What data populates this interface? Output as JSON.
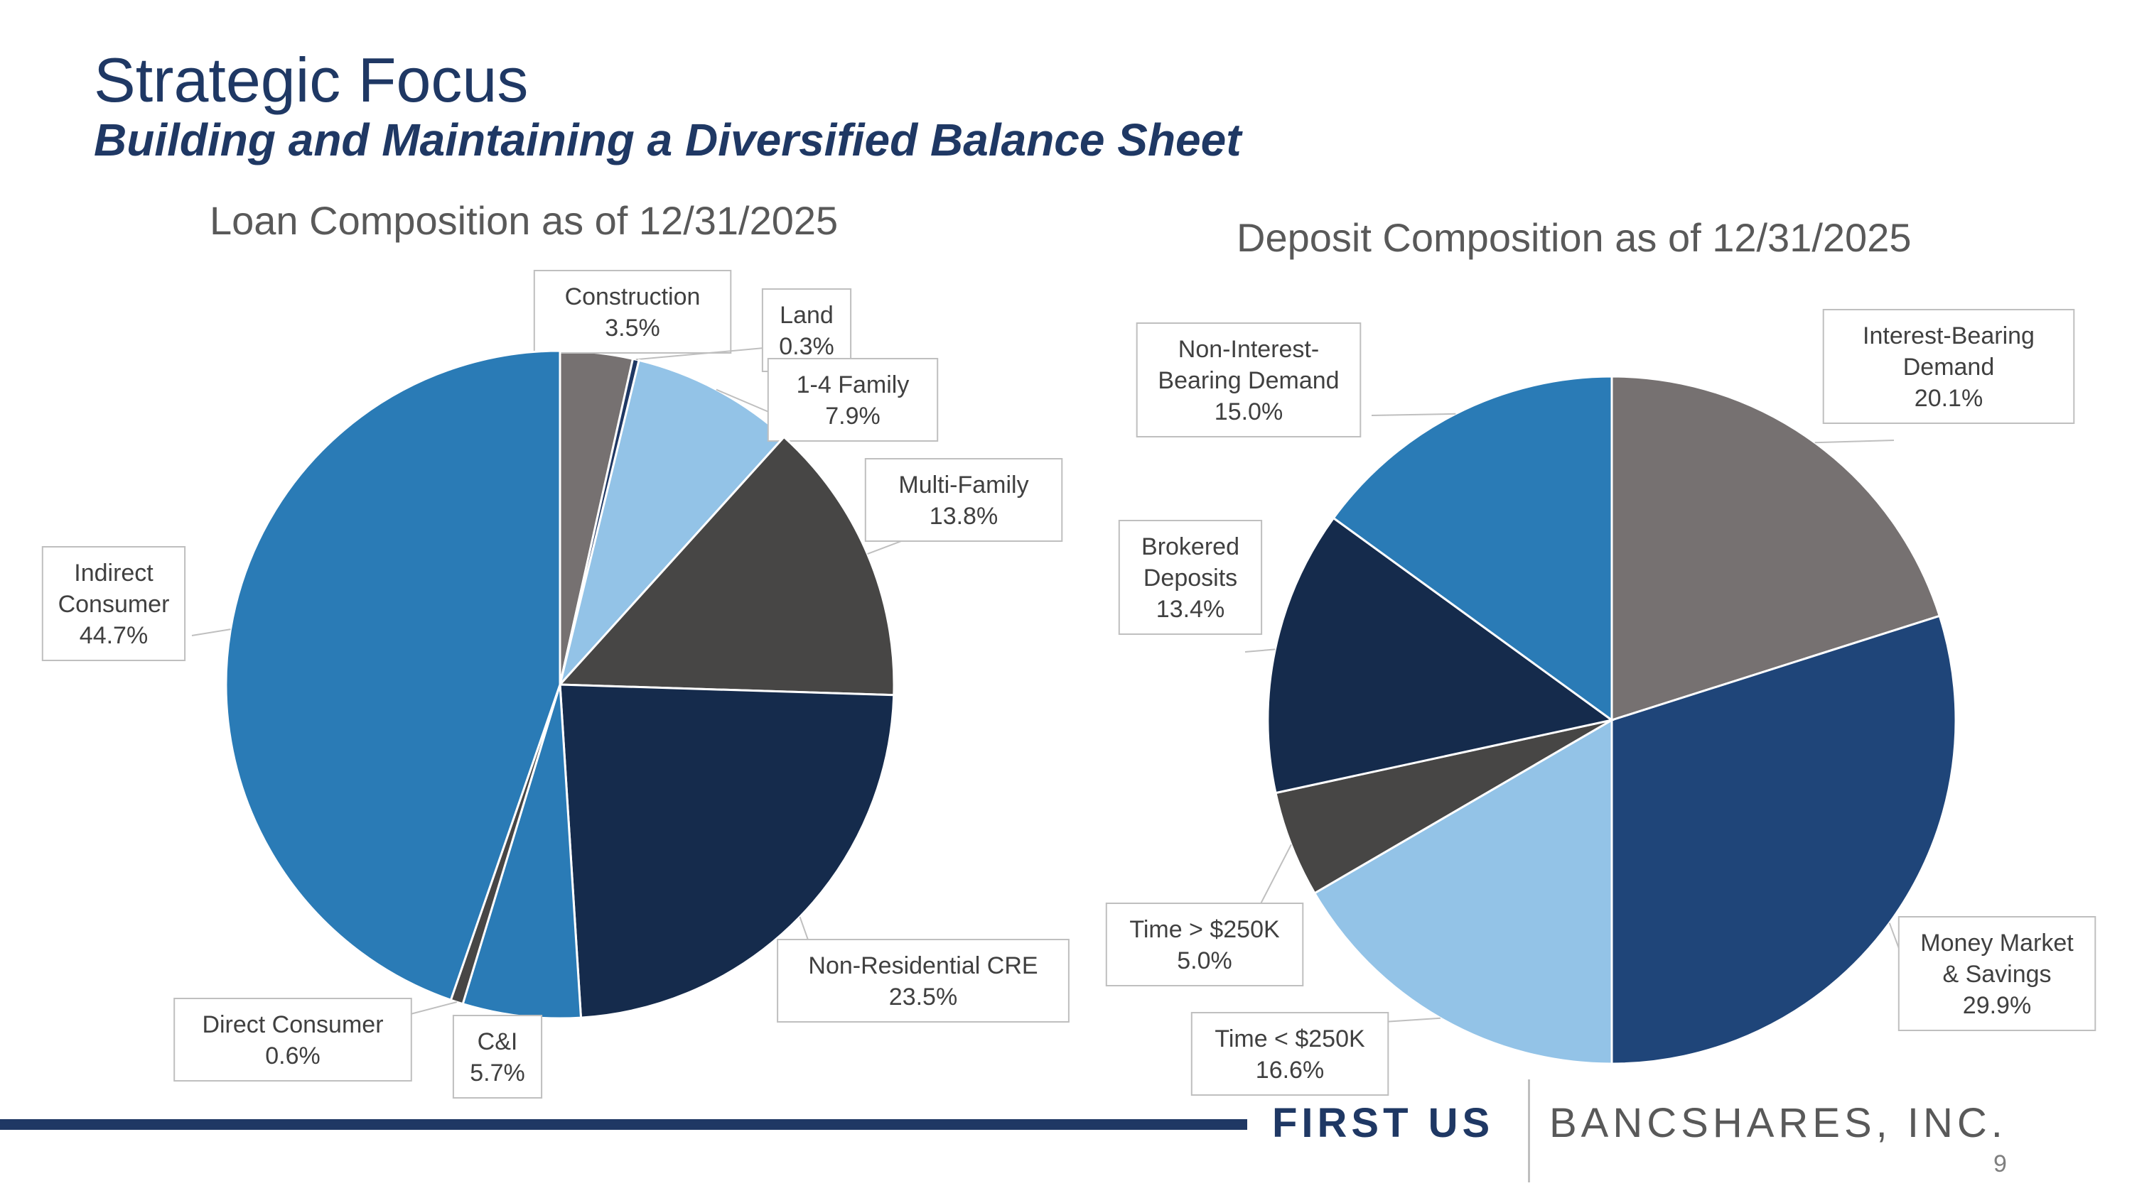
{
  "slide": {
    "title": "Strategic Focus",
    "subtitle": "Building and Maintaining a Diversified Balance Sheet",
    "page_number": "9"
  },
  "footer": {
    "brand_bold": "FIRST US",
    "brand_light": "BANCSHARES, INC."
  },
  "colors": {
    "title": "#1f3864",
    "chart_title": "#595959",
    "label_text": "#404040",
    "label_border": "#bfbfbf"
  },
  "chart_data": [
    {
      "type": "pie",
      "title": "Loan Composition as of 12/31/2025",
      "slices": [
        {
          "name": "Construction",
          "value": 3.5,
          "label_lines": [
            "Construction",
            "3.5%"
          ],
          "color": "#767171"
        },
        {
          "name": "Land",
          "value": 0.3,
          "label_lines": [
            "Land",
            "0.3%"
          ],
          "color": "#1f3864"
        },
        {
          "name": "1-4 Family",
          "value": 7.9,
          "label_lines": [
            "1-4 Family",
            "7.9%"
          ],
          "color": "#93c3e7"
        },
        {
          "name": "Multi-Family",
          "value": 13.8,
          "label_lines": [
            "Multi-Family",
            "13.8%"
          ],
          "color": "#474645"
        },
        {
          "name": "Non-Residential CRE",
          "value": 23.5,
          "label_lines": [
            "Non-Residential CRE",
            "23.5%"
          ],
          "color": "#152b4c"
        },
        {
          "name": "C&I",
          "value": 5.7,
          "label_lines": [
            "C&I",
            "5.7%"
          ],
          "color": "#2a7bb6"
        },
        {
          "name": "Direct Consumer",
          "value": 0.6,
          "label_lines": [
            "Direct Consumer",
            "0.6%"
          ],
          "color": "#474645"
        },
        {
          "name": "Indirect Consumer",
          "value": 44.7,
          "label_lines": [
            "Indirect",
            "Consumer",
            "44.7%"
          ],
          "color": "#2a7bb6"
        }
      ]
    },
    {
      "type": "pie",
      "title": "Deposit Composition as of 12/31/2025",
      "slices": [
        {
          "name": "Interest-Bearing Demand",
          "value": 20.1,
          "label_lines": [
            "Interest-Bearing",
            "Demand",
            "20.1%"
          ],
          "color": "#767171"
        },
        {
          "name": "Money Market & Savings",
          "value": 29.9,
          "label_lines": [
            "Money Market",
            "& Savings",
            "29.9%"
          ],
          "color": "#1f4579"
        },
        {
          "name": "Time < $250K",
          "value": 16.6,
          "label_lines": [
            "Time < $250K",
            "16.6%"
          ],
          "color": "#93c3e7"
        },
        {
          "name": "Time > $250K",
          "value": 5.0,
          "label_lines": [
            "Time > $250K",
            "5.0%"
          ],
          "color": "#474645"
        },
        {
          "name": "Brokered Deposits",
          "value": 13.4,
          "label_lines": [
            "Brokered",
            "Deposits",
            "13.4%"
          ],
          "color": "#152b4c"
        },
        {
          "name": "Non-Interest-Bearing Demand",
          "value": 15.0,
          "label_lines": [
            "Non-Interest-",
            "Bearing Demand",
            "15.0%"
          ],
          "color": "#2a7bb6"
        }
      ]
    }
  ]
}
